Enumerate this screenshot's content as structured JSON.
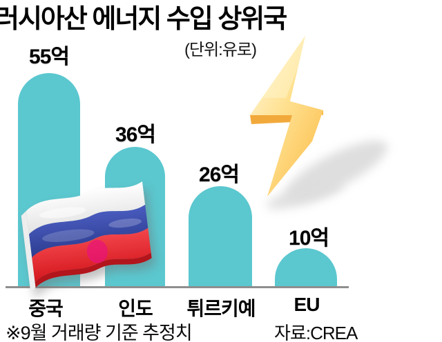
{
  "title": "러시아산 에너지 수입 상위국",
  "unit_label": "(단위:유로)",
  "footnote": "※9월 거래량 기준 추정치",
  "source": "자료:CREA",
  "chart_data": {
    "type": "bar",
    "title": "러시아산 에너지 수입 상위국",
    "unit": "(단위:유로)",
    "categories": [
      "중국",
      "인도",
      "튀르키예",
      "EU"
    ],
    "values": [
      55,
      36,
      26,
      10
    ],
    "value_labels": [
      "55억",
      "36억",
      "26억",
      "10억"
    ],
    "ylim": [
      0,
      55
    ],
    "grid": false,
    "legend": "none",
    "footnote": "※9월 거래량 기준 추정치",
    "source": "자료:CREA"
  },
  "colors": {
    "bar": "#5BC7CF",
    "baseline": "#8E8E8E",
    "text": "#000000",
    "background": "#FFFFFF",
    "bolt_light": "#FFF6D8",
    "bolt_dark": "#FBB942",
    "flag_white": "#FFFFFF",
    "flag_blue": "#3B4CA6",
    "flag_red": "#E02830"
  },
  "icons": {
    "flag": "russia-flag",
    "bolt": "lightning-bolt"
  }
}
